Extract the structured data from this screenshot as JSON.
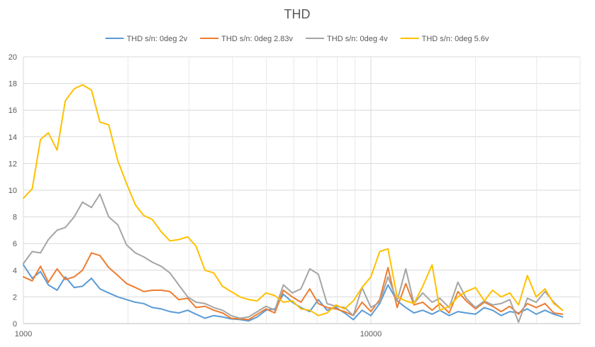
{
  "chart_data": {
    "type": "line",
    "title": "THD",
    "xlabel": "",
    "ylabel": "",
    "x_scale": "log",
    "xlim": [
      1000,
      40000
    ],
    "ylim": [
      0,
      20
    ],
    "x_ticks": [
      1000,
      10000
    ],
    "y_ticks": [
      0,
      2,
      4,
      6,
      8,
      10,
      12,
      14,
      16,
      18,
      20
    ],
    "grid": true,
    "legend_position": "top",
    "x": [
      1000,
      1060,
      1120,
      1180,
      1250,
      1320,
      1400,
      1480,
      1570,
      1660,
      1760,
      1870,
      1980,
      2100,
      2220,
      2350,
      2490,
      2640,
      2800,
      2970,
      3140,
      3330,
      3530,
      3740,
      3960,
      4200,
      4450,
      4710,
      4990,
      5290,
      5600,
      5940,
      6290,
      6670,
      7060,
      7480,
      7930,
      8400,
      8900,
      9430,
      10000,
      10600,
      11200,
      11900,
      12600,
      13300,
      14100,
      15000,
      15800,
      16800,
      17800,
      18800,
      20000,
      21200,
      22400,
      23700,
      25100,
      26600,
      28200,
      29900,
      31700,
      33600,
      35600
    ],
    "series": [
      {
        "name": "THD s/n: 0deg 2v",
        "color": "#5b9bd5",
        "values": [
          4.4,
          3.4,
          3.9,
          2.9,
          2.5,
          3.5,
          2.7,
          2.8,
          3.4,
          2.6,
          2.3,
          2.0,
          1.8,
          1.6,
          1.5,
          1.2,
          1.1,
          0.9,
          0.8,
          1.0,
          0.7,
          0.4,
          0.6,
          0.5,
          0.35,
          0.3,
          0.2,
          0.5,
          1.0,
          1.1,
          2.2,
          1.6,
          1.2,
          0.9,
          1.8,
          1.0,
          1.2,
          0.8,
          0.3,
          1.0,
          0.6,
          1.5,
          2.9,
          1.7,
          1.2,
          0.8,
          1.0,
          0.7,
          1.0,
          0.6,
          0.9,
          0.8,
          0.7,
          1.2,
          1.0,
          0.6,
          0.9,
          0.8,
          1.1,
          0.7,
          1.0,
          0.7,
          0.5
        ]
      },
      {
        "name": "THD s/n: 0deg 2.83v",
        "color": "#ed7d31",
        "values": [
          3.5,
          3.2,
          4.3,
          3.1,
          4.1,
          3.3,
          3.5,
          4.0,
          5.3,
          5.1,
          4.2,
          3.6,
          3.0,
          2.7,
          2.4,
          2.5,
          2.5,
          2.4,
          1.8,
          1.9,
          1.2,
          1.3,
          1.0,
          0.8,
          0.4,
          0.35,
          0.3,
          0.7,
          1.1,
          0.8,
          2.5,
          2.0,
          1.6,
          2.6,
          1.5,
          1.2,
          1.1,
          0.9,
          0.6,
          1.6,
          0.9,
          1.8,
          4.2,
          1.2,
          3.0,
          1.4,
          1.6,
          1.0,
          1.5,
          0.8,
          2.4,
          1.7,
          1.1,
          1.6,
          1.3,
          0.9,
          1.3,
          0.7,
          1.5,
          1.2,
          1.5,
          0.8,
          0.7
        ]
      },
      {
        "name": "THD s/n: 0deg 4v",
        "color": "#a5a5a5",
        "values": [
          4.5,
          5.4,
          5.3,
          6.3,
          7.0,
          7.2,
          8.0,
          9.1,
          8.7,
          9.7,
          8.0,
          7.4,
          5.9,
          5.3,
          5.0,
          4.6,
          4.3,
          3.8,
          2.9,
          2.0,
          1.6,
          1.5,
          1.2,
          1.0,
          0.6,
          0.4,
          0.5,
          0.9,
          1.3,
          1.0,
          2.9,
          2.3,
          2.6,
          4.1,
          3.7,
          1.5,
          1.3,
          1.2,
          0.6,
          2.7,
          1.2,
          1.6,
          3.5,
          1.7,
          4.1,
          1.5,
          2.3,
          1.6,
          1.9,
          1.2,
          3.1,
          1.9,
          1.2,
          1.7,
          1.4,
          1.5,
          1.8,
          0.1,
          1.9,
          1.6,
          2.4,
          1.6,
          1.0
        ]
      },
      {
        "name": "THD s/n: 0deg 5.6v",
        "color": "#ffc000",
        "values": [
          9.4,
          10.1,
          13.8,
          14.3,
          13.0,
          16.7,
          17.6,
          17.9,
          17.5,
          15.1,
          14.9,
          12.2,
          10.5,
          8.9,
          8.1,
          7.8,
          6.9,
          6.2,
          6.3,
          6.5,
          5.8,
          4.0,
          3.8,
          2.8,
          2.4,
          2.0,
          1.8,
          1.7,
          2.3,
          2.1,
          1.6,
          1.7,
          1.1,
          1.0,
          0.6,
          0.8,
          1.4,
          1.1,
          1.7,
          2.7,
          3.5,
          5.4,
          5.6,
          2.0,
          1.7,
          1.5,
          2.8,
          4.4,
          1.0,
          1.3,
          2.0,
          2.4,
          2.7,
          1.7,
          2.5,
          2.0,
          2.3,
          1.4,
          3.6,
          2.0,
          2.6,
          1.5,
          1.0
        ]
      }
    ]
  }
}
